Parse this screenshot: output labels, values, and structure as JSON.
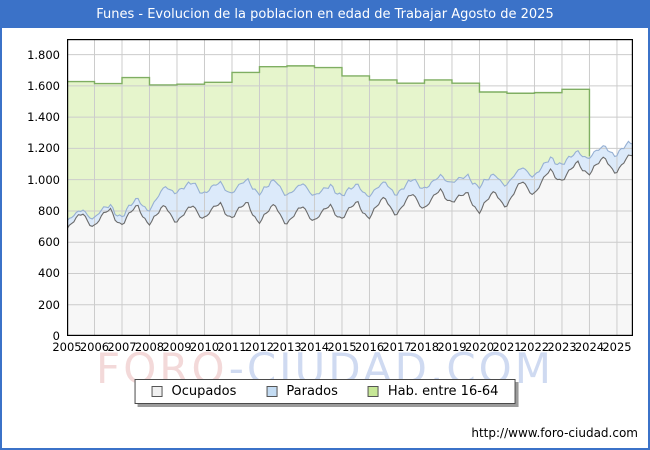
{
  "window": {
    "title": "Funes - Evolucion de la poblacion en edad de Trabajar Agosto de 2025"
  },
  "footer": {
    "url": "http://www.foro-ciudad.com"
  },
  "watermark": {
    "part1": "FORO",
    "part2": "-CIUDAD.COM"
  },
  "legend": {
    "items": [
      {
        "label": "Ocupados",
        "swatch": "#f0f0f0"
      },
      {
        "label": "Parados",
        "swatch": "#c4dcf3"
      },
      {
        "label": "Hab. entre 16-64",
        "swatch": "#c6e796"
      }
    ]
  },
  "colors": {
    "frame_blue": "#3b72c8",
    "grid": "#cccccc",
    "plot_border": "#000000",
    "watermark_pink": "#f3d9d9",
    "watermark_blue": "#cfdaf1"
  },
  "chart_data": {
    "type": "area",
    "title": "Funes - Evolucion de la poblacion en edad de Trabajar Agosto de 2025",
    "xlabel": "",
    "ylabel": "",
    "ylim": [
      0,
      1900
    ],
    "grid": true,
    "legend_position": "bottom",
    "months": 248,
    "x_start_year": 2005,
    "x_end_label": "Agosto 2025",
    "xticks": [
      "2005",
      "2006",
      "2007",
      "2008",
      "2009",
      "2010",
      "2011",
      "2012",
      "2013",
      "2014",
      "2015",
      "2016",
      "2017",
      "2018",
      "2019",
      "2020",
      "2021",
      "2022",
      "2023",
      "2024",
      "2025"
    ],
    "yticks": [
      0,
      200,
      400,
      600,
      800,
      1000,
      1200,
      1400,
      1600,
      1800
    ],
    "ytick_labels": [
      "0",
      "200",
      "400",
      "600",
      "800",
      "1.000",
      "1.200",
      "1.400",
      "1.600",
      "1.800"
    ],
    "series": [
      {
        "name": "Ocupados",
        "mode": "monthly",
        "yearly_base": [
          728,
          748,
          768,
          775,
          778,
          796,
          806,
          786,
          772,
          782,
          796,
          812,
          836,
          866,
          900,
          840,
          890,
          964,
          1040,
          1082,
          1100,
          1110
        ],
        "seasonal": [
          -50,
          -35,
          -12,
          6,
          22,
          38,
          48,
          52,
          22,
          -8,
          -28,
          -45
        ],
        "noise": [
          9,
          1.7,
          0,
          7,
          0.41,
          2
        ],
        "fill": "#f7f7f7",
        "stroke": "#6b6b6b"
      },
      {
        "name": "Parados",
        "mode": "monthly-stacked-on-ocupados",
        "yearly_base": [
          34,
          40,
          38,
          75,
          180,
          146,
          146,
          172,
          170,
          148,
          134,
          122,
          112,
          109,
          108,
          146,
          116,
          98,
          88,
          86,
          96,
          95
        ],
        "seasonal": [
          14,
          10,
          4,
          -2,
          -8,
          -12,
          -16,
          -14,
          -4,
          2,
          8,
          12
        ],
        "noise": [
          4,
          1.9,
          0,
          3,
          0.5,
          0
        ],
        "fill": "#dceafa",
        "stroke": "#96b0d3"
      },
      {
        "name": "Hab. entre 16-64",
        "mode": "yearly-steps",
        "yearly": [
          1628,
          1615,
          1653,
          1606,
          1611,
          1623,
          1686,
          1723,
          1728,
          1717,
          1664,
          1638,
          1617,
          1638,
          1617,
          1561,
          1553,
          1557,
          1578,
          1080,
          1080
        ],
        "cliff_year_index": 19,
        "cliff_stroke_to": 1150,
        "fill": "#e6f5cc",
        "stroke": "#7fae62"
      }
    ]
  }
}
